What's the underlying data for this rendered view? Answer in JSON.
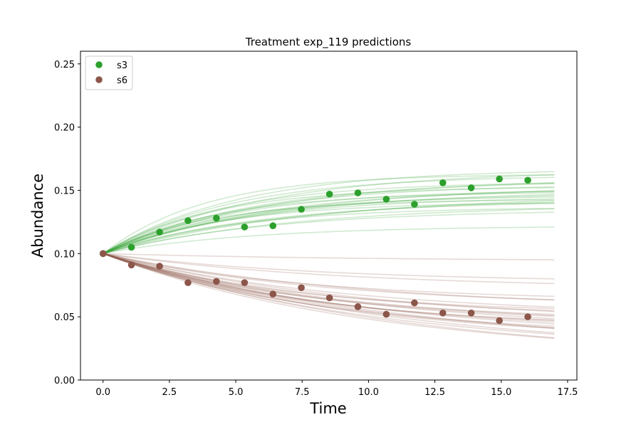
{
  "chart_data": {
    "type": "line",
    "title": "Treatment exp_119 predictions",
    "xlabel": "Time",
    "ylabel": "Abundance",
    "xlim": [
      -0.85,
      17.85
    ],
    "ylim": [
      0.0,
      0.26
    ],
    "x_ticks": [
      0.0,
      2.5,
      5.0,
      7.5,
      10.0,
      12.5,
      15.0,
      17.5
    ],
    "x_tick_labels": [
      "0.0",
      "2.5",
      "5.0",
      "7.5",
      "10.0",
      "12.5",
      "15.0",
      "17.5"
    ],
    "y_ticks": [
      0.0,
      0.05,
      0.1,
      0.15,
      0.2,
      0.25
    ],
    "y_tick_labels": [
      "0.00",
      "0.05",
      "0.10",
      "0.15",
      "0.20",
      "0.25"
    ],
    "grid": false,
    "legend_position": "top-left",
    "prediction_x_end": 17,
    "series": [
      {
        "name": "s3",
        "color": "#2ca02c",
        "observed_x": [
          0,
          1.07,
          2.13,
          3.2,
          4.27,
          5.33,
          6.4,
          7.47,
          8.53,
          9.6,
          10.67,
          11.73,
          12.8,
          13.87,
          14.93,
          16.0
        ],
        "observed_y": [
          0.1,
          0.105,
          0.117,
          0.126,
          0.128,
          0.121,
          0.122,
          0.135,
          0.147,
          0.148,
          0.143,
          0.139,
          0.156,
          0.152,
          0.159,
          0.158
        ],
        "prediction_curves": {
          "start": 0.1,
          "plateaus": [
            0.122,
            0.135,
            0.137,
            0.139,
            0.141,
            0.142,
            0.143,
            0.144,
            0.145,
            0.146,
            0.147,
            0.148,
            0.149,
            0.15,
            0.151,
            0.152,
            0.153,
            0.154,
            0.155,
            0.157,
            0.158,
            0.16,
            0.162,
            0.163,
            0.166,
            0.167
          ],
          "rates": [
            0.18,
            0.16,
            0.2,
            0.14,
            0.22,
            0.17,
            0.25,
            0.15,
            0.19,
            0.21,
            0.13,
            0.18,
            0.23,
            0.16,
            0.2,
            0.17,
            0.24,
            0.15,
            0.19,
            0.22,
            0.18,
            0.16,
            0.21,
            0.26,
            0.17,
            0.2
          ]
        }
      },
      {
        "name": "s6",
        "color": "#8c564b",
        "observed_x": [
          0,
          1.07,
          2.13,
          3.2,
          4.27,
          5.33,
          6.4,
          7.47,
          8.53,
          9.6,
          10.67,
          11.73,
          12.8,
          13.87,
          14.93,
          16.0
        ],
        "observed_y": [
          0.1,
          0.091,
          0.09,
          0.077,
          0.078,
          0.077,
          0.068,
          0.073,
          0.065,
          0.058,
          0.052,
          0.061,
          0.053,
          0.053,
          0.047,
          0.05
        ],
        "prediction_curves": {
          "start": 0.1,
          "plateaus": [
            0.094,
            0.077,
            0.072,
            0.062,
            0.058,
            0.055,
            0.052,
            0.05,
            0.048,
            0.046,
            0.044,
            0.043,
            0.042,
            0.041,
            0.039,
            0.037,
            0.036,
            0.034,
            0.032,
            0.03,
            0.028,
            0.025,
            0.022,
            0.02,
            0.018,
            0.015
          ],
          "rates": [
            0.1,
            0.12,
            0.11,
            0.13,
            0.12,
            0.1,
            0.14,
            0.11,
            0.12,
            0.13,
            0.1,
            0.12,
            0.11,
            0.13,
            0.12,
            0.1,
            0.11,
            0.12,
            0.1,
            0.11,
            0.1,
            0.09,
            0.1,
            0.09,
            0.1,
            0.09
          ]
        }
      }
    ]
  }
}
